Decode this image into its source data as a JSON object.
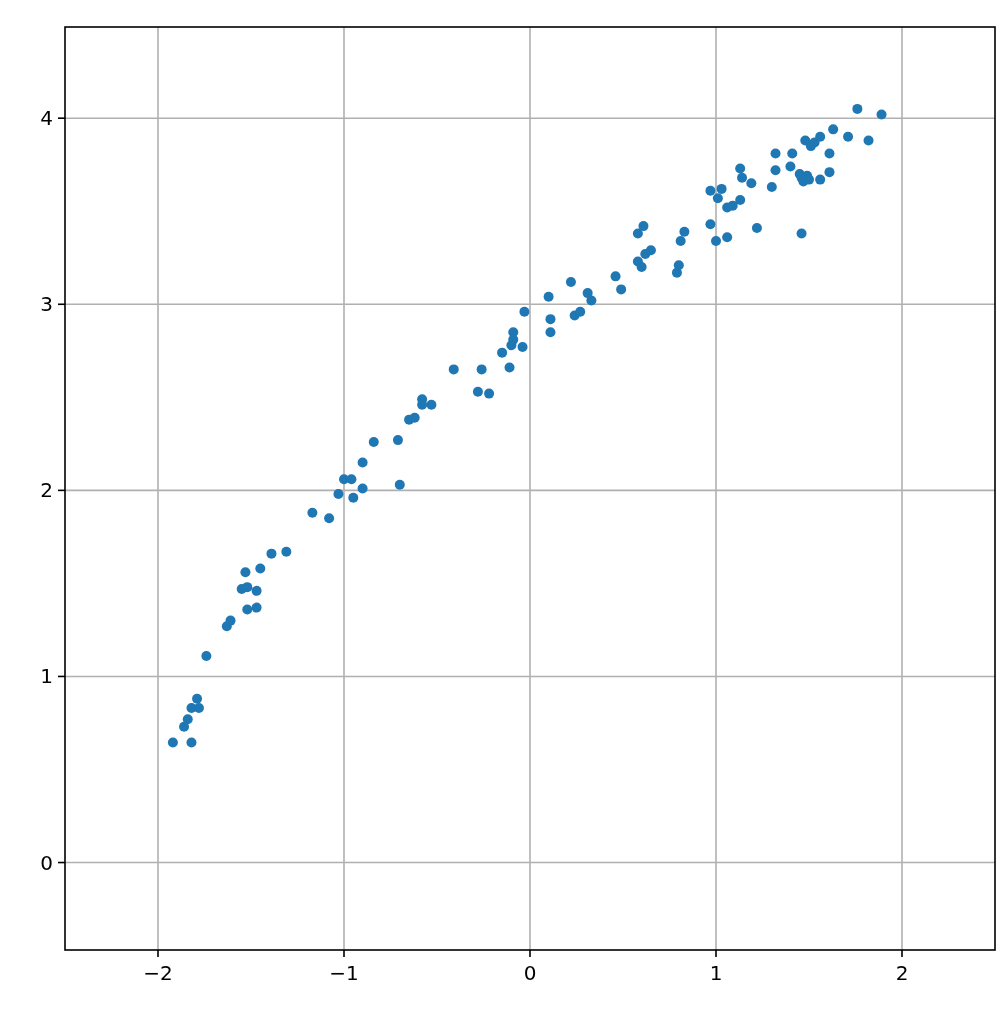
{
  "chart_data": {
    "type": "scatter",
    "marker": "circle",
    "grid": true,
    "xlim": [
      -2.5,
      2.5
    ],
    "ylim": [
      -0.47,
      4.49
    ],
    "xticks": [
      {
        "value": -2,
        "label": "−2"
      },
      {
        "value": -1,
        "label": "−1"
      },
      0,
      1,
      2
    ],
    "yticks": [
      0,
      1,
      2,
      3,
      4
    ],
    "series": [
      {
        "color": "#1f77b4",
        "x": [
          -1.92,
          -1.82,
          -1.86,
          -1.84,
          -1.82,
          -1.79,
          -1.78,
          -1.74,
          -1.63,
          -1.61,
          -1.55,
          -1.53,
          -1.52,
          -1.52,
          -1.47,
          -1.47,
          -1.45,
          -1.39,
          -1.31,
          -1.17,
          -1.08,
          -1.03,
          -1.0,
          -0.96,
          -0.95,
          -0.9,
          -0.9,
          -0.84,
          -0.71,
          -0.7,
          -0.65,
          -0.62,
          -0.58,
          -0.58,
          -0.53,
          -0.41,
          -0.28,
          -0.26,
          -0.22,
          -0.15,
          -0.11,
          -0.1,
          -0.09,
          -0.09,
          -0.04,
          -0.03,
          0.1,
          0.11,
          0.11,
          0.22,
          0.24,
          0.27,
          0.31,
          0.33,
          0.46,
          0.49,
          0.58,
          0.58,
          0.6,
          0.61,
          0.62,
          0.65,
          0.79,
          0.8,
          0.81,
          0.83,
          0.97,
          0.97,
          1.0,
          1.01,
          1.03,
          1.06,
          1.06,
          1.09,
          1.13,
          1.13,
          1.14,
          1.19,
          1.22,
          1.3,
          1.32,
          1.32,
          1.4,
          1.41,
          1.45,
          1.46,
          1.46,
          1.47,
          1.48,
          1.49,
          1.5,
          1.51,
          1.53,
          1.56,
          1.56,
          1.61,
          1.61,
          1.63,
          1.71,
          1.76,
          1.82,
          1.89
        ],
        "values": [
          0.645,
          0.645,
          0.73,
          0.77,
          0.83,
          0.88,
          0.83,
          1.11,
          1.27,
          1.3,
          1.47,
          1.56,
          1.48,
          1.36,
          1.37,
          1.46,
          1.58,
          1.66,
          1.67,
          1.88,
          1.85,
          1.98,
          2.06,
          2.06,
          1.96,
          2.01,
          2.15,
          2.26,
          2.27,
          2.03,
          2.38,
          2.39,
          2.49,
          2.46,
          2.46,
          2.65,
          2.53,
          2.65,
          2.52,
          2.74,
          2.66,
          2.78,
          2.85,
          2.81,
          2.77,
          2.96,
          3.04,
          2.92,
          2.85,
          3.12,
          2.94,
          2.96,
          3.06,
          3.02,
          3.15,
          3.08,
          3.23,
          3.38,
          3.2,
          3.42,
          3.27,
          3.29,
          3.17,
          3.21,
          3.34,
          3.39,
          3.43,
          3.61,
          3.34,
          3.57,
          3.62,
          3.36,
          3.52,
          3.53,
          3.73,
          3.56,
          3.68,
          3.65,
          3.41,
          3.63,
          3.81,
          3.72,
          3.74,
          3.81,
          3.7,
          3.68,
          3.38,
          3.66,
          3.88,
          3.69,
          3.67,
          3.85,
          3.87,
          3.67,
          3.9,
          3.71,
          3.81,
          3.94,
          3.9,
          4.05,
          3.88,
          4.02
        ]
      }
    ]
  }
}
